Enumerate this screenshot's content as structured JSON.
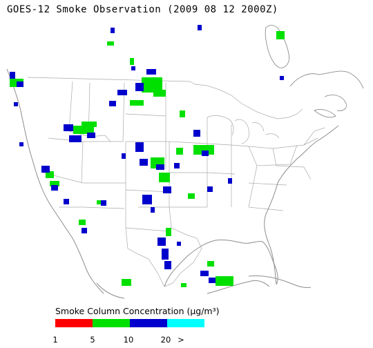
{
  "title": "GOES-12 Smoke Observation (2009 08 12  2000Z)",
  "legend": {
    "title": "Smoke Column Concentration (µg/m³)",
    "colors": [
      "#ff0000",
      "#00e000",
      "#0000cc",
      "#00ffff"
    ],
    "tick_labels": [
      "1",
      "5",
      "10",
      "20",
      ">"
    ]
  },
  "map": {
    "region": "continental-united-states",
    "boundary_color": "#aaaaaa",
    "coast_color": "#8c8c8c"
  },
  "smoke_levels": [
    {
      "name": "5-10",
      "color": "#00e000"
    },
    {
      "name": "10-20",
      "color": "#0000cc"
    }
  ]
}
